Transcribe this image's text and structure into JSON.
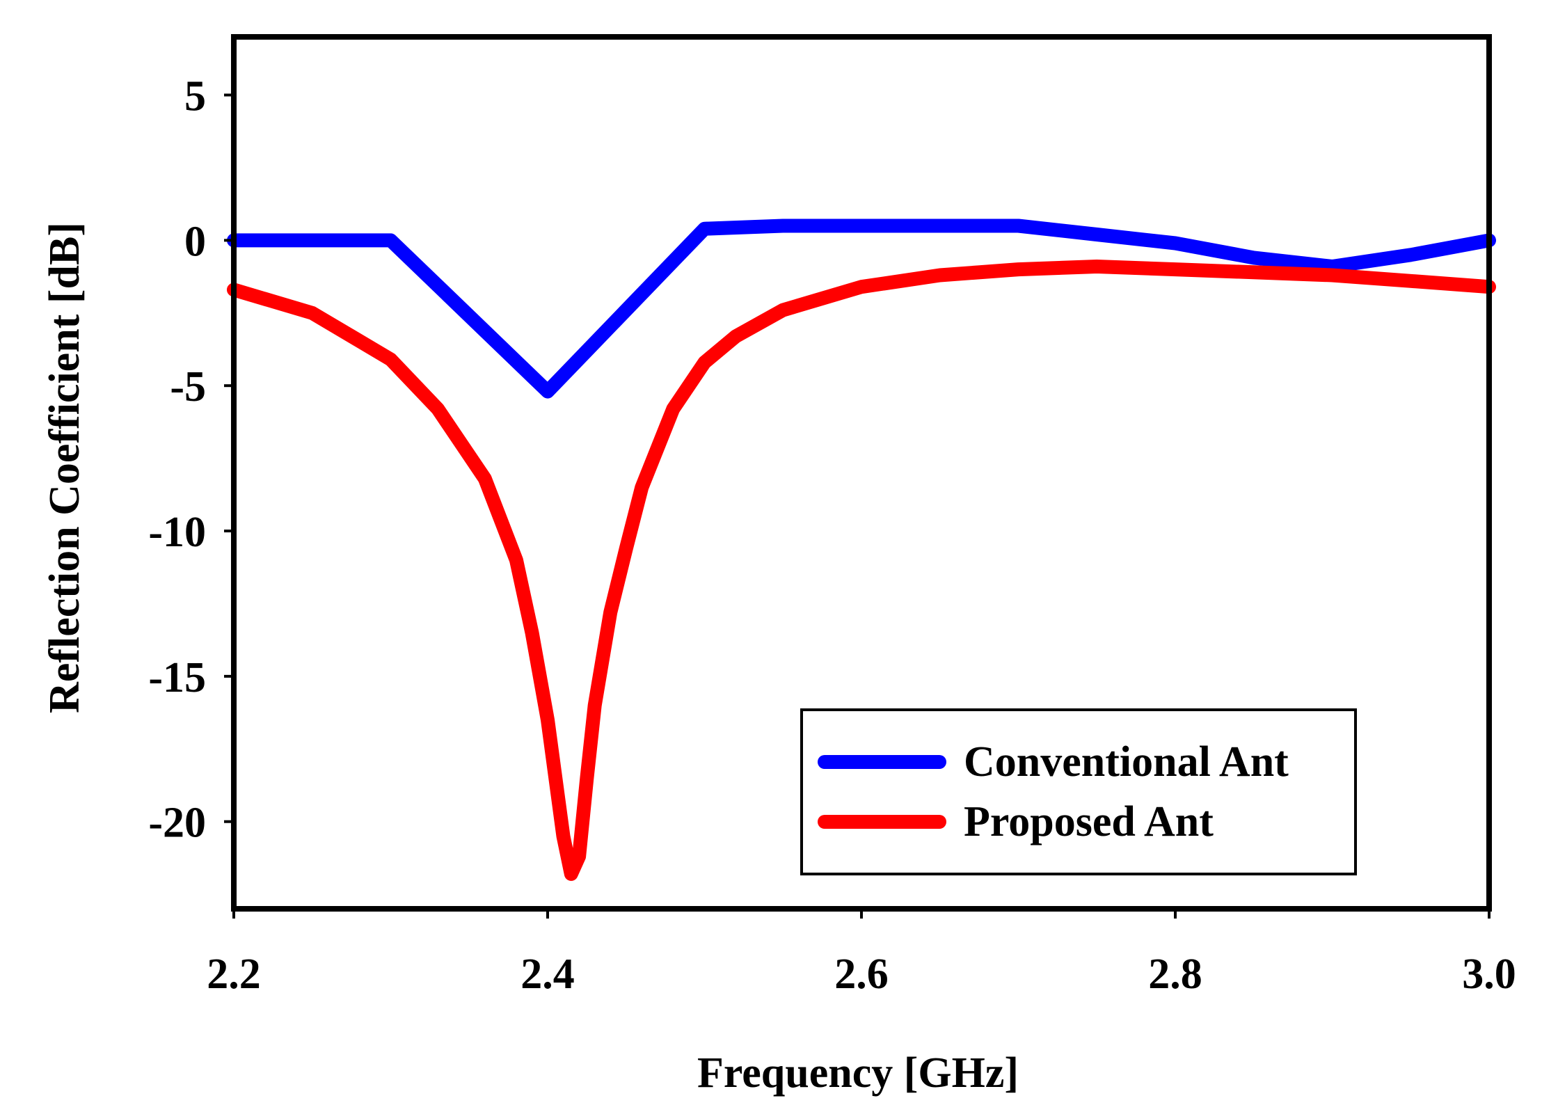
{
  "chart_data": {
    "type": "line",
    "title": "",
    "xlabel": "Frequency [GHz]",
    "ylabel": "Reflection Coefficient [dB]",
    "xlim": [
      2.2,
      3.0
    ],
    "ylim": [
      -23,
      7
    ],
    "xticks": [
      2.2,
      2.4,
      2.6,
      2.8,
      3.0
    ],
    "xtick_labels": [
      "2.2",
      "2.4",
      "2.6",
      "2.8",
      "3.0"
    ],
    "yticks": [
      5,
      0,
      -5,
      -10,
      -15,
      -20
    ],
    "ytick_labels": [
      "5",
      "0",
      "-5",
      "-10",
      "-15",
      "-20"
    ],
    "grid": false,
    "legend_position": "bottom-right",
    "series": [
      {
        "name": "Conventional Ant",
        "color": "#0000ff",
        "x": [
          2.2,
          2.3,
          2.4,
          2.5,
          2.55,
          2.6,
          2.7,
          2.75,
          2.8,
          2.85,
          2.9,
          2.95,
          3.0
        ],
        "y": [
          0.0,
          0.0,
          -5.2,
          0.4,
          0.5,
          0.5,
          0.5,
          0.2,
          -0.1,
          -0.6,
          -0.9,
          -0.5,
          0.0
        ]
      },
      {
        "name": "Proposed Ant",
        "color": "#ff0000",
        "x": [
          2.2,
          2.25,
          2.3,
          2.33,
          2.36,
          2.38,
          2.39,
          2.4,
          2.41,
          2.415,
          2.42,
          2.425,
          2.43,
          2.44,
          2.45,
          2.46,
          2.48,
          2.5,
          2.52,
          2.55,
          2.6,
          2.65,
          2.7,
          2.75,
          2.8,
          2.85,
          2.9,
          2.95,
          3.0
        ],
        "y": [
          -1.7,
          -2.5,
          -4.1,
          -5.8,
          -8.2,
          -11.0,
          -13.5,
          -16.5,
          -20.5,
          -21.8,
          -21.2,
          -18.5,
          -16.0,
          -12.8,
          -10.6,
          -8.5,
          -5.8,
          -4.2,
          -3.3,
          -2.4,
          -1.6,
          -1.2,
          -1.0,
          -0.9,
          -1.0,
          -1.1,
          -1.2,
          -1.4,
          -1.6
        ]
      }
    ]
  }
}
